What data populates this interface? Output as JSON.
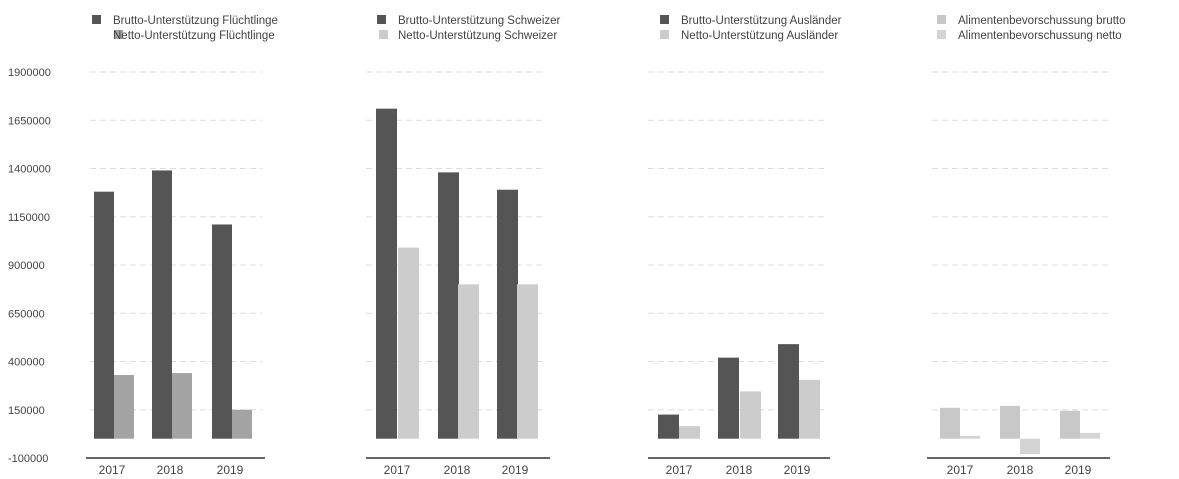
{
  "chart_data": {
    "type": "bar",
    "ylim": [
      -100000,
      1900000
    ],
    "y_ticks": [
      "-100000",
      "150000",
      "400000",
      "650000",
      "900000",
      "1150000",
      "1400000",
      "1650000",
      "1900000"
    ],
    "grid": true,
    "colors": {
      "brutto_dark": "#555555",
      "netto_fluechtlinge": "#a3a3a3",
      "netto_light": "#cccccc",
      "aliment_brutto": "#c8c8c8",
      "aliment_netto": "#d4d4d4",
      "gridline": "#dddddd",
      "axis": "#333333",
      "text": "#444444"
    },
    "panels": [
      {
        "categories": [
          "2017",
          "2018",
          "2019"
        ],
        "series": [
          {
            "name": "Brutto-Unterstützung Flüchtlinge",
            "color_key": "brutto_dark",
            "values": [
              1280000,
              1390000,
              1110000
            ]
          },
          {
            "name": "Netto-Unterstützung Flüchtlinge",
            "color_key": "netto_fluechtlinge",
            "values": [
              330000,
              340000,
              150000
            ]
          }
        ]
      },
      {
        "categories": [
          "2017",
          "2018",
          "2019"
        ],
        "series": [
          {
            "name": "Brutto-Unterstützung Schweizer",
            "color_key": "brutto_dark",
            "values": [
              1710000,
              1380000,
              1290000
            ]
          },
          {
            "name": "Netto-Unterstützung Schweizer",
            "color_key": "netto_light",
            "values": [
              990000,
              800000,
              800000
            ]
          }
        ]
      },
      {
        "categories": [
          "2017",
          "2018",
          "2019"
        ],
        "series": [
          {
            "name": "Brutto-Unterstützung Ausländer",
            "color_key": "brutto_dark",
            "values": [
              125000,
              420000,
              490000
            ]
          },
          {
            "name": "Netto-Unterstützung Ausländer",
            "color_key": "netto_light",
            "values": [
              65000,
              245000,
              305000
            ]
          }
        ]
      },
      {
        "categories": [
          "2017",
          "2018",
          "2019"
        ],
        "series": [
          {
            "name": "Alimentenbevorschussung brutto",
            "color_key": "aliment_brutto",
            "values": [
              160000,
              170000,
              145000
            ]
          },
          {
            "name": "Alimentenbevorschussung netto",
            "color_key": "aliment_netto",
            "values": [
              15000,
              -80000,
              30000
            ]
          }
        ]
      }
    ]
  }
}
